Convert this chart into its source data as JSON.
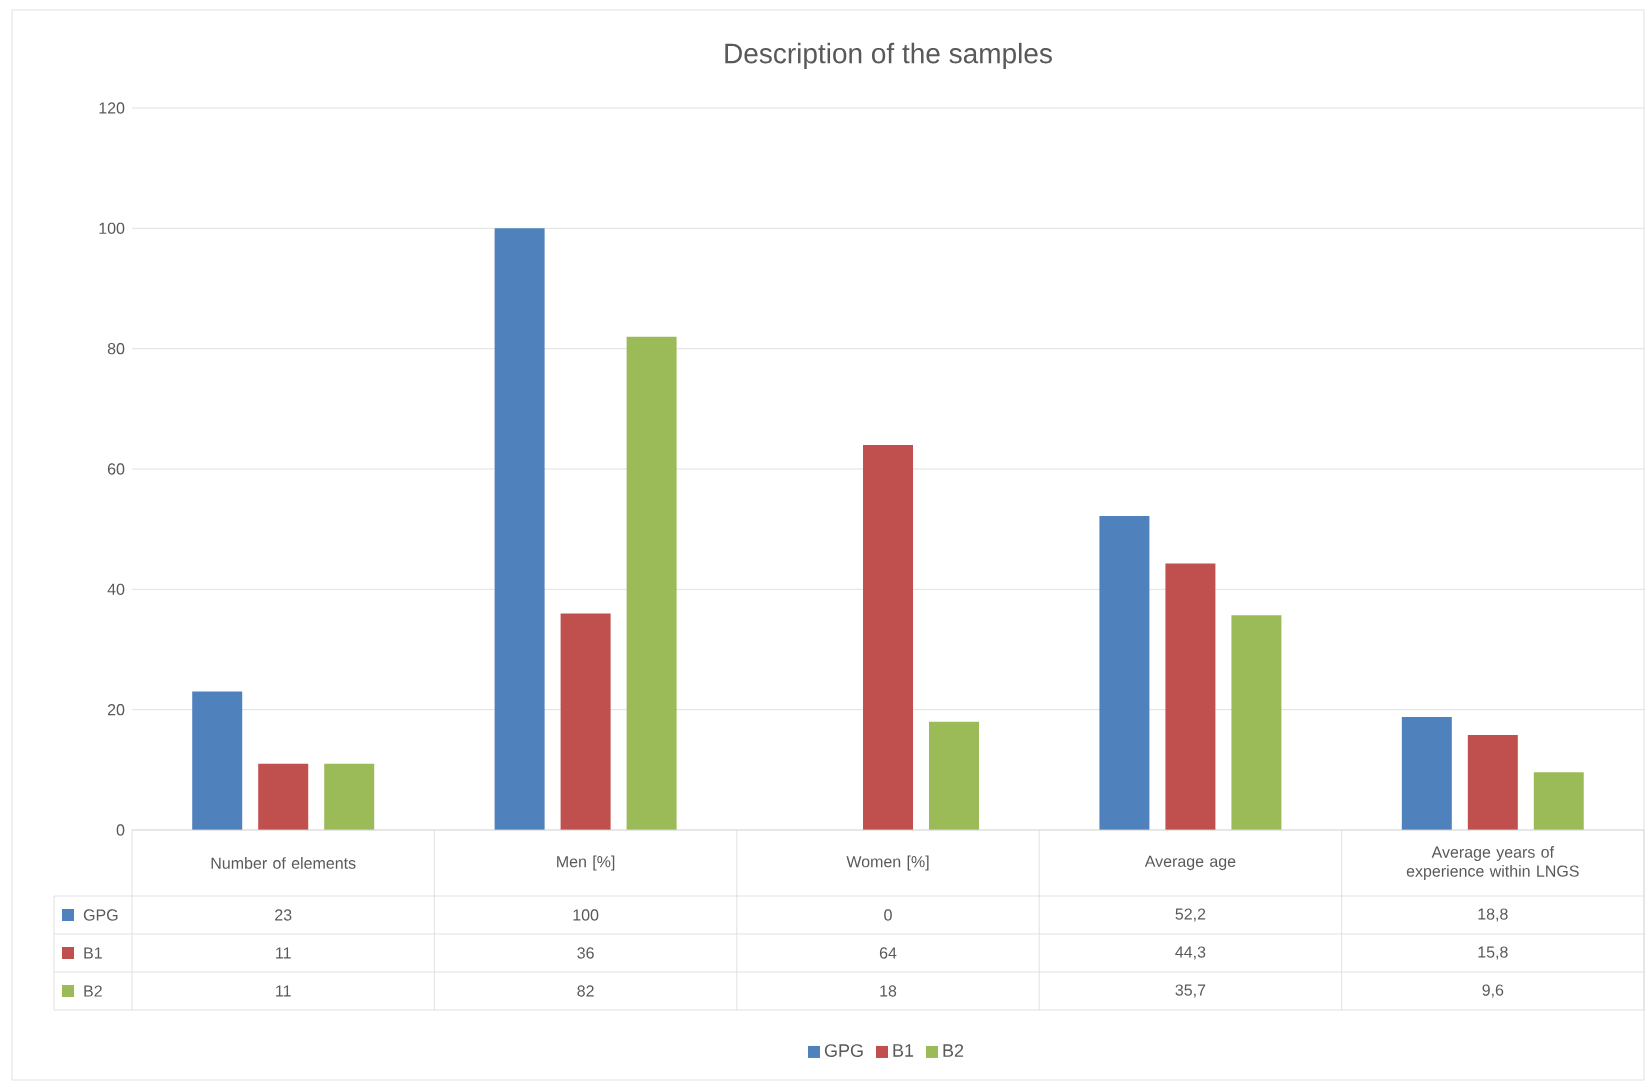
{
  "chart_data": {
    "type": "bar",
    "title": "Description of the samples",
    "categories": [
      "Number of elements",
      "Men [%]",
      "Women [%]",
      "Average age",
      "Average years of experience within LNGS"
    ],
    "series": [
      {
        "name": "GPG",
        "color": "#4f81bd",
        "values": [
          23,
          100,
          0,
          52.2,
          18.8
        ],
        "value_labels": [
          "23",
          "100",
          "0",
          "52,2",
          "18,8"
        ]
      },
      {
        "name": "B1",
        "color": "#c0504d",
        "values": [
          11,
          36,
          64,
          44.3,
          15.8
        ],
        "value_labels": [
          "11",
          "36",
          "64",
          "44,3",
          "15,8"
        ]
      },
      {
        "name": "B2",
        "color": "#9bbb59",
        "values": [
          11,
          82,
          18,
          35.7,
          9.6
        ],
        "value_labels": [
          "11",
          "82",
          "18",
          "35,7",
          "9,6"
        ]
      }
    ],
    "ylim": [
      0,
      120
    ],
    "yticks": [
      0,
      20,
      40,
      60,
      80,
      100,
      120
    ],
    "grid": "y",
    "legend": "bottom"
  }
}
